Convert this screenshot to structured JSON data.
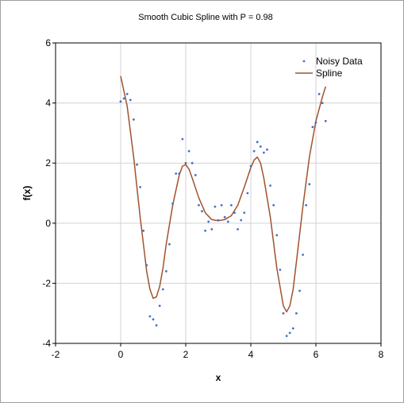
{
  "chart_data": {
    "type": "scatter",
    "title": "Smooth Cubic Spline with P = 0.98",
    "xlabel": "x",
    "ylabel": "f(x)",
    "xlim": [
      -2,
      8
    ],
    "ylim": [
      -4,
      6
    ],
    "xticks": [
      -2,
      0,
      2,
      4,
      6,
      8
    ],
    "yticks": [
      -4,
      -2,
      0,
      2,
      4,
      6
    ],
    "grid": true,
    "legend": "top-right",
    "series": [
      {
        "name": "Noisy Data",
        "kind": "points",
        "color": "#4472c4",
        "x": [
          0.0,
          0.1,
          0.2,
          0.3,
          0.4,
          0.5,
          0.6,
          0.7,
          0.8,
          0.9,
          1.0,
          1.1,
          1.2,
          1.3,
          1.4,
          1.5,
          1.6,
          1.7,
          1.8,
          1.9,
          2.0,
          2.1,
          2.2,
          2.3,
          2.4,
          2.5,
          2.6,
          2.7,
          2.8,
          2.9,
          3.0,
          3.1,
          3.2,
          3.3,
          3.4,
          3.5,
          3.6,
          3.7,
          3.8,
          3.9,
          4.0,
          4.1,
          4.2,
          4.3,
          4.4,
          4.5,
          4.6,
          4.7,
          4.8,
          4.9,
          5.0,
          5.1,
          5.2,
          5.3,
          5.4,
          5.5,
          5.6,
          5.7,
          5.8,
          5.9,
          6.0,
          6.1,
          6.2,
          6.3
        ],
        "y": [
          4.05,
          4.15,
          4.3,
          4.1,
          3.45,
          1.95,
          1.2,
          -0.25,
          -1.4,
          -3.1,
          -3.2,
          -3.4,
          -2.75,
          -2.2,
          -1.6,
          -0.7,
          0.65,
          1.65,
          1.65,
          2.8,
          2.0,
          2.4,
          2.0,
          1.6,
          0.6,
          0.4,
          -0.25,
          0.05,
          -0.2,
          0.55,
          0.1,
          0.6,
          0.2,
          0.05,
          0.6,
          0.35,
          -0.2,
          0.1,
          0.35,
          1.0,
          1.9,
          2.4,
          2.7,
          2.55,
          2.35,
          2.45,
          1.25,
          0.6,
          -0.4,
          -1.55,
          -3.0,
          -3.75,
          -3.65,
          -3.5,
          -3.0,
          -2.25,
          -1.05,
          0.6,
          1.3,
          3.2,
          3.35,
          4.3,
          4.0,
          3.4
        ]
      },
      {
        "name": "Spline",
        "kind": "line",
        "color": "#a0522d",
        "x": [
          0.0,
          0.2,
          0.4,
          0.6,
          0.8,
          0.9,
          1.0,
          1.1,
          1.2,
          1.3,
          1.4,
          1.6,
          1.8,
          1.9,
          2.0,
          2.1,
          2.2,
          2.4,
          2.6,
          2.8,
          3.0,
          3.2,
          3.4,
          3.6,
          3.8,
          4.0,
          4.1,
          4.2,
          4.3,
          4.4,
          4.6,
          4.8,
          5.0,
          5.1,
          5.2,
          5.3,
          5.4,
          5.6,
          5.8,
          6.0,
          6.2,
          6.3
        ],
        "y": [
          4.9,
          3.9,
          2.2,
          0.2,
          -1.6,
          -2.2,
          -2.5,
          -2.45,
          -2.1,
          -1.5,
          -0.7,
          0.6,
          1.6,
          1.9,
          1.95,
          1.8,
          1.5,
          0.85,
          0.35,
          0.12,
          0.08,
          0.12,
          0.25,
          0.6,
          1.2,
          1.85,
          2.1,
          2.2,
          2.0,
          1.5,
          0.2,
          -1.5,
          -2.75,
          -2.95,
          -2.75,
          -2.2,
          -1.3,
          0.55,
          2.2,
          3.4,
          4.2,
          4.55
        ]
      }
    ]
  }
}
